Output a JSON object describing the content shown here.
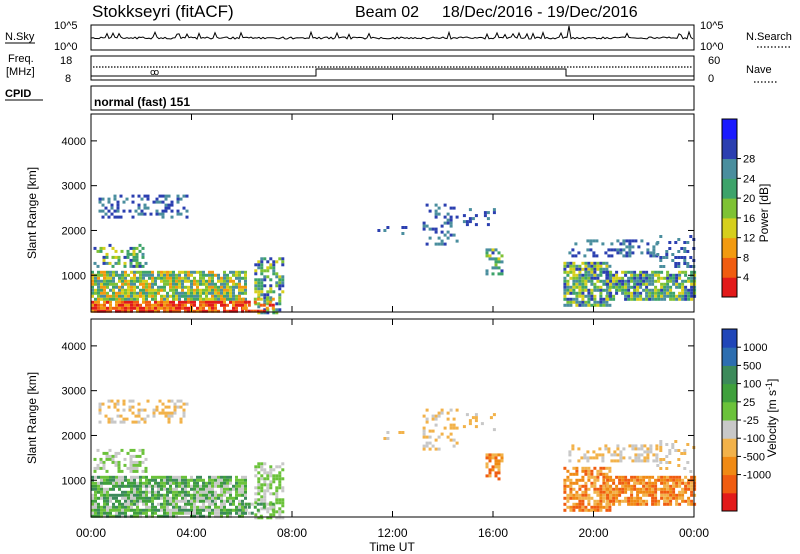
{
  "header": {
    "station": "Stokkseyri (fitACF)",
    "beam": "Beam 02",
    "dates": "18/Dec/2016 - 19/Dec/2016"
  },
  "strips": {
    "nsky": {
      "label": "N.Sky",
      "ticks_left": [
        "10^5",
        "10^0"
      ],
      "ticks_right": [
        "10^5",
        "10^0"
      ],
      "right_label": "N.Search"
    },
    "freq": {
      "label": "Freq.",
      "unit": "[MHz]",
      "ticks_left": [
        "18",
        "8"
      ],
      "ticks_right": [
        "60",
        "0"
      ],
      "right_label": "Nave"
    },
    "cpid": {
      "label": "CPID",
      "text": "normal (fast) 151"
    }
  },
  "chart_data": [
    {
      "type": "heatmap",
      "title": "",
      "ylabel": "Slant Range [km]",
      "ylim": [
        180,
        4600
      ],
      "yticks": [
        "1000",
        "2000",
        "3000",
        "4000"
      ],
      "xlim_hours": [
        0,
        24
      ],
      "colorbar": {
        "label": "Power [dB]",
        "ticks": [
          "4",
          "8",
          "12",
          "16",
          "20",
          "24",
          "28"
        ],
        "colors": [
          "#1a1aff",
          "#2b3fb0",
          "#4a8e9e",
          "#3da36a",
          "#7ec234",
          "#d6cf1c",
          "#f29a10",
          "#f05c10",
          "#e21a1a"
        ]
      }
    },
    {
      "type": "heatmap",
      "title": "",
      "ylabel": "Slant Range [km]",
      "ylim": [
        180,
        4600
      ],
      "yticks": [
        "1000",
        "2000",
        "3000",
        "4000"
      ],
      "xlim_hours": [
        0,
        24
      ],
      "colorbar": {
        "label": "Velocity [m s^-1]",
        "ticks": [
          "1000",
          "500",
          "100",
          "25",
          "-25",
          "-100",
          "-500",
          "-1000"
        ],
        "colors": [
          "#2046b8",
          "#2d6eb0",
          "#3c8a5a",
          "#3fa03c",
          "#6bc23a",
          "#c8c8c8",
          "#f2b24a",
          "#f08a14",
          "#f05c10",
          "#e21a1a"
        ]
      }
    }
  ],
  "xaxis": {
    "ticks": [
      "00:00",
      "04:00",
      "08:00",
      "12:00",
      "16:00",
      "20:00",
      "00:00"
    ],
    "label": "Time UT"
  }
}
